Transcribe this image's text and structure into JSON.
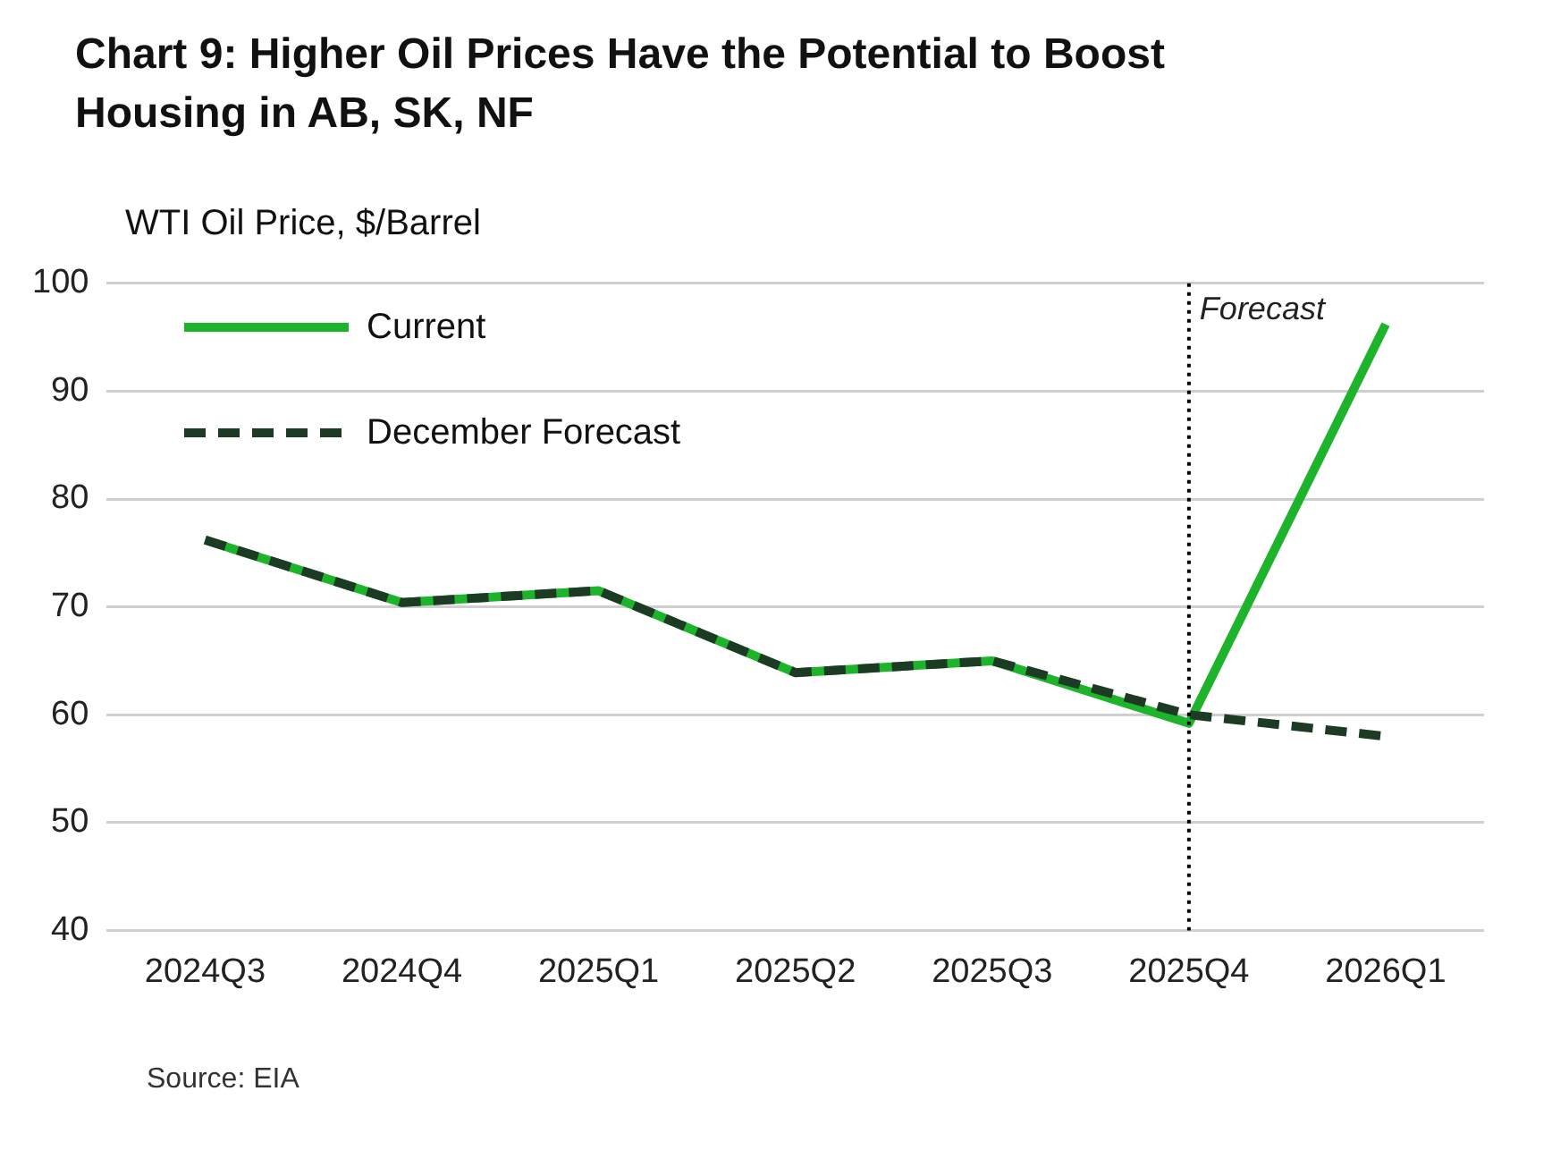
{
  "chart_data": {
    "type": "line",
    "title": "Chart 9: Higher Oil Prices Have the Potential to Boost Housing in AB, SK, NF",
    "ylabel": "WTI Oil Price, $/Barrel",
    "categories": [
      "2024Q3",
      "2024Q4",
      "2025Q1",
      "2025Q2",
      "2025Q3",
      "2025Q4",
      "2026Q1"
    ],
    "series": [
      {
        "name": "Current",
        "color": "#1db32b",
        "line_style": "solid",
        "values": [
          76.2,
          70.4,
          71.5,
          63.9,
          65.0,
          59.2,
          96.2
        ]
      },
      {
        "name": "December Forecast",
        "color": "#1d3b24",
        "line_style": "dashed",
        "values": [
          76.2,
          70.4,
          71.5,
          63.9,
          65.0,
          60.0,
          58.0
        ]
      }
    ],
    "ylim": [
      40,
      100
    ],
    "yticks": [
      40,
      50,
      60,
      70,
      80,
      90,
      100
    ],
    "grid": "y",
    "legend": "top left",
    "marker": "none",
    "ref_lines": [
      {
        "axis": "x",
        "value": "2025Q4",
        "label": "Forecast",
        "color": "#000000",
        "line_style": "dotted"
      }
    ],
    "annotations": [
      "Source: EIA"
    ]
  }
}
